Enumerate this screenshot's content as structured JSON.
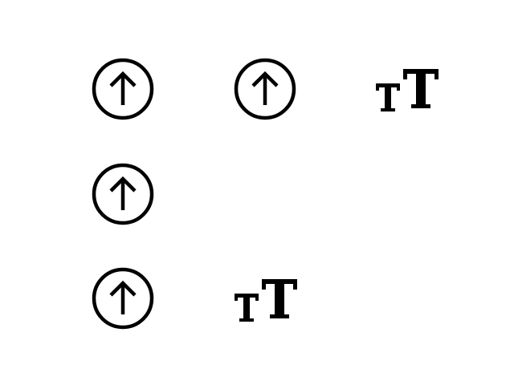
{
  "toolbar": {
    "icons": [
      {
        "icon": "arrow-up-circle-icon",
        "row": 1,
        "col": 1
      },
      {
        "icon": "arrow-up-circle-icon",
        "row": 1,
        "col": 2
      },
      {
        "icon": "text-size-icon",
        "row": 1,
        "col": 3
      },
      {
        "icon": "arrow-up-circle-icon",
        "row": 2,
        "col": 1
      },
      {
        "icon": "arrow-up-circle-icon",
        "row": 3,
        "col": 1
      },
      {
        "icon": "text-size-icon",
        "row": 3,
        "col": 2
      }
    ],
    "colors": {
      "background": "#ffffff",
      "icon": "#000000"
    }
  }
}
